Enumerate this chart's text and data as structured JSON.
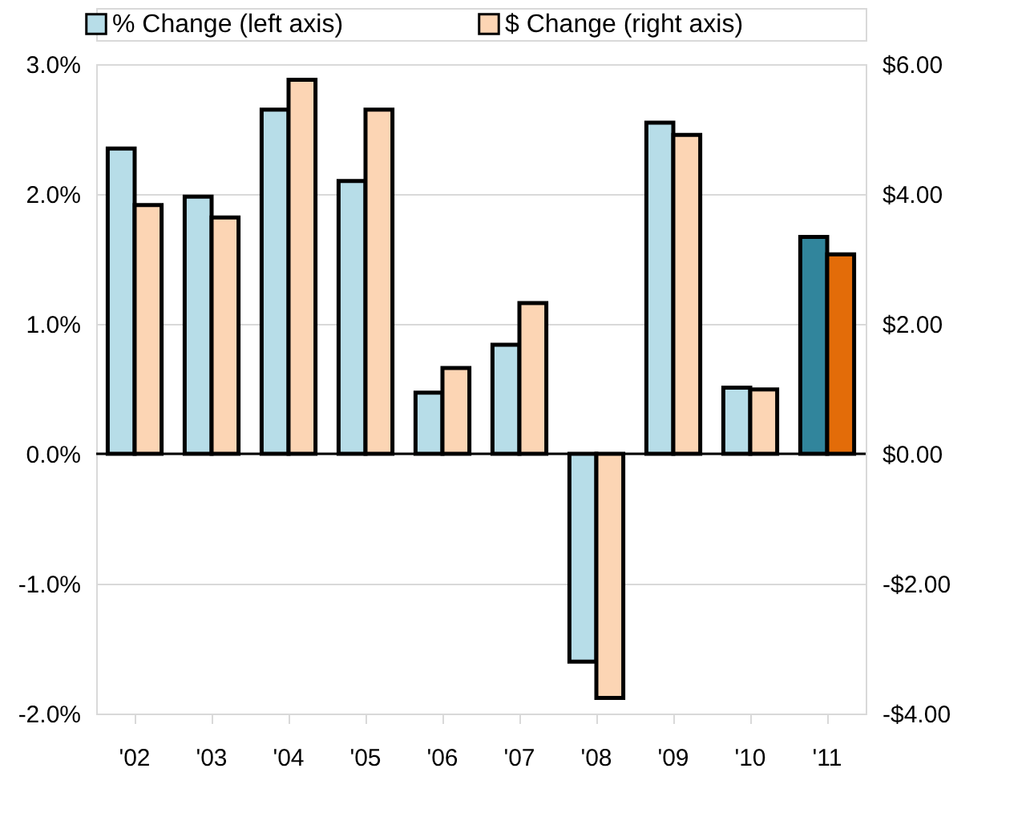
{
  "chart_data": {
    "type": "bar",
    "categories": [
      "'02",
      "'03",
      "'04",
      "'05",
      "'06",
      "'07",
      "'08",
      "'09",
      "'10",
      "'11"
    ],
    "series": [
      {
        "name": "% Change (left axis)",
        "color": "#b7dde8",
        "colors": [
          "#b7dde8",
          "#b7dde8",
          "#b7dde8",
          "#b7dde8",
          "#b7dde8",
          "#b7dde8",
          "#b7dde8",
          "#b7dde8",
          "#b7dde8",
          "#31859c"
        ],
        "values": [
          2.35,
          1.98,
          2.65,
          2.1,
          0.47,
          0.84,
          -1.6,
          2.55,
          0.51,
          1.67
        ]
      },
      {
        "name": "$ Change (right axis)",
        "axis": "y2",
        "color": "#fcd5b4",
        "colors": [
          "#fcd5b4",
          "#fcd5b4",
          "#fcd5b4",
          "#fcd5b4",
          "#fcd5b4",
          "#fcd5b4",
          "#fcd5b4",
          "#fcd5b4",
          "#fcd5b4",
          "#e36c09"
        ],
        "values": [
          3.83,
          3.64,
          5.76,
          5.3,
          1.32,
          2.32,
          -3.76,
          4.91,
          0.99,
          3.07
        ]
      }
    ],
    "ylim": [
      -2,
      3
    ],
    "yticks": [
      {
        "value": -2,
        "label": "-2.0%"
      },
      {
        "value": -1,
        "label": "-1.0%"
      },
      {
        "value": 0,
        "label": "0.0%"
      },
      {
        "value": 1,
        "label": "1.0%"
      },
      {
        "value": 2,
        "label": "2.0%"
      },
      {
        "value": 3,
        "label": "3.0%"
      }
    ],
    "y2lim": [
      -4,
      6
    ],
    "y2ticks": [
      {
        "value": -4,
        "label": "-$4.00"
      },
      {
        "value": -2,
        "label": "-$2.00"
      },
      {
        "value": 0,
        "label": "$0.00"
      },
      {
        "value": 2,
        "label": "$2.00"
      },
      {
        "value": 4,
        "label": "$4.00"
      },
      {
        "value": 6,
        "label": "$6.00"
      }
    ],
    "grid": "y",
    "legend": "top"
  }
}
